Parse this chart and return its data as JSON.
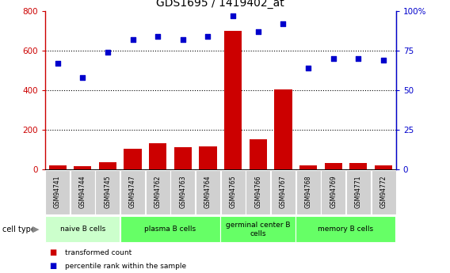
{
  "title": "GDS1695 / 1419402_at",
  "samples": [
    "GSM94741",
    "GSM94744",
    "GSM94745",
    "GSM94747",
    "GSM94762",
    "GSM94763",
    "GSM94764",
    "GSM94765",
    "GSM94766",
    "GSM94767",
    "GSM94768",
    "GSM94769",
    "GSM94771",
    "GSM94772"
  ],
  "transformed_count": [
    20,
    15,
    35,
    105,
    130,
    110,
    115,
    700,
    150,
    405,
    20,
    30,
    30,
    20
  ],
  "percentile_rank": [
    67,
    58,
    74,
    82,
    84,
    82,
    84,
    97,
    87,
    92,
    64,
    70,
    70,
    69
  ],
  "cell_groups": [
    {
      "label": "naive B cells",
      "start": 0,
      "end": 3,
      "color": "#ccffcc"
    },
    {
      "label": "plasma B cells",
      "start": 3,
      "end": 7,
      "color": "#66ff66"
    },
    {
      "label": "germinal center B\ncells",
      "start": 7,
      "end": 10,
      "color": "#66ff66"
    },
    {
      "label": "memory B cells",
      "start": 10,
      "end": 14,
      "color": "#66ff66"
    }
  ],
  "bar_color": "#cc0000",
  "dot_color": "#0000cc",
  "left_ylim": [
    0,
    800
  ],
  "right_ylim": [
    0,
    100
  ],
  "left_yticks": [
    0,
    200,
    400,
    600,
    800
  ],
  "right_yticks": [
    0,
    25,
    50,
    75,
    100
  ],
  "right_yticklabels": [
    "0",
    "25",
    "50",
    "75",
    "100%"
  ],
  "grid_lines": [
    200,
    400,
    600
  ],
  "sample_box_color": "#d0d0d0",
  "legend_items": [
    {
      "label": "transformed count",
      "color": "#cc0000"
    },
    {
      "label": "percentile rank within the sample",
      "color": "#0000cc"
    }
  ]
}
